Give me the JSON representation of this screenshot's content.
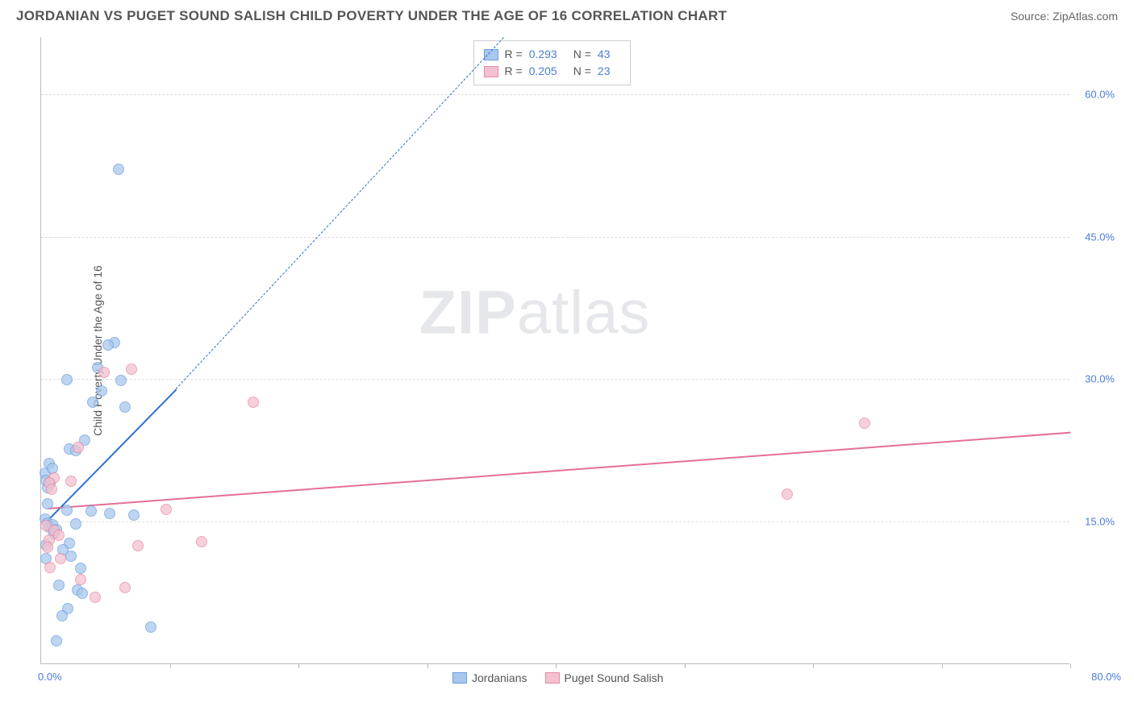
{
  "header": {
    "title": "JORDANIAN VS PUGET SOUND SALISH CHILD POVERTY UNDER THE AGE OF 16 CORRELATION CHART",
    "source": "Source: ZipAtlas.com"
  },
  "chart": {
    "type": "scatter",
    "y_label": "Child Poverty Under the Age of 16",
    "x_min": 0,
    "x_max": 80,
    "y_min": 0,
    "y_max": 66,
    "x_origin_label": "0.0%",
    "x_max_label": "80.0%",
    "y_ticks": [
      15.0,
      30.0,
      45.0,
      60.0
    ],
    "y_tick_labels": [
      "15.0%",
      "30.0%",
      "45.0%",
      "60.0%"
    ],
    "x_tick_marks": [
      10,
      20,
      30,
      40,
      50,
      60,
      70,
      80
    ],
    "grid_color": "#dddddd",
    "axis_color": "#bbbbbb",
    "point_radius": 7,
    "point_opacity": 0.75,
    "series": [
      {
        "key": "jordanians",
        "label": "Jordanians",
        "fill": "#a9c7ed",
        "stroke": "#6b9fe0",
        "trend_color": "#2e6fd1",
        "r_value": "0.293",
        "n_value": "43",
        "trend_start": {
          "x": 0.5,
          "y": 15.2
        },
        "trend_solid_end": {
          "x": 10.5,
          "y": 29.0
        },
        "trend_dashed_end": {
          "x": 36,
          "y": 66
        },
        "points": [
          {
            "x": 6.0,
            "y": 52.0
          },
          {
            "x": 5.7,
            "y": 33.8
          },
          {
            "x": 5.2,
            "y": 33.5
          },
          {
            "x": 4.4,
            "y": 31.1
          },
          {
            "x": 2.0,
            "y": 29.9
          },
          {
            "x": 6.2,
            "y": 29.8
          },
          {
            "x": 4.7,
            "y": 28.7
          },
          {
            "x": 4.0,
            "y": 27.5
          },
          {
            "x": 6.5,
            "y": 27.0
          },
          {
            "x": 3.4,
            "y": 23.5
          },
          {
            "x": 2.2,
            "y": 22.6
          },
          {
            "x": 2.7,
            "y": 22.4
          },
          {
            "x": 0.6,
            "y": 21.0
          },
          {
            "x": 0.3,
            "y": 20.0
          },
          {
            "x": 0.4,
            "y": 19.3
          },
          {
            "x": 0.5,
            "y": 18.5
          },
          {
            "x": 0.7,
            "y": 19.0
          },
          {
            "x": 2.0,
            "y": 16.1
          },
          {
            "x": 3.9,
            "y": 16.0
          },
          {
            "x": 5.3,
            "y": 15.8
          },
          {
            "x": 2.7,
            "y": 14.7
          },
          {
            "x": 0.3,
            "y": 15.2
          },
          {
            "x": 0.5,
            "y": 14.8
          },
          {
            "x": 0.6,
            "y": 14.3
          },
          {
            "x": 0.9,
            "y": 14.6
          },
          {
            "x": 1.2,
            "y": 14.1
          },
          {
            "x": 1.0,
            "y": 13.7
          },
          {
            "x": 0.4,
            "y": 12.5
          },
          {
            "x": 2.2,
            "y": 12.6
          },
          {
            "x": 1.7,
            "y": 12.0
          },
          {
            "x": 2.3,
            "y": 11.3
          },
          {
            "x": 0.4,
            "y": 11.0
          },
          {
            "x": 3.1,
            "y": 10.0
          },
          {
            "x": 1.4,
            "y": 8.2
          },
          {
            "x": 2.8,
            "y": 7.7
          },
          {
            "x": 3.2,
            "y": 7.4
          },
          {
            "x": 2.1,
            "y": 5.8
          },
          {
            "x": 1.6,
            "y": 5.0
          },
          {
            "x": 8.5,
            "y": 3.8
          },
          {
            "x": 1.2,
            "y": 2.4
          },
          {
            "x": 0.5,
            "y": 16.8
          },
          {
            "x": 7.2,
            "y": 15.6
          },
          {
            "x": 0.9,
            "y": 20.5
          }
        ]
      },
      {
        "key": "puget_sound_salish",
        "label": "Puget Sound Salish",
        "fill": "#f4c1ce",
        "stroke": "#e78aa5",
        "trend_color": "#e46f96",
        "r_value": "0.205",
        "n_value": "23",
        "trend_start": {
          "x": 0.5,
          "y": 16.5
        },
        "trend_solid_end": {
          "x": 80,
          "y": 24.5
        },
        "points": [
          {
            "x": 7.0,
            "y": 31.0
          },
          {
            "x": 4.9,
            "y": 30.6
          },
          {
            "x": 16.5,
            "y": 27.5
          },
          {
            "x": 64.0,
            "y": 25.3
          },
          {
            "x": 2.9,
            "y": 22.7
          },
          {
            "x": 1.0,
            "y": 19.5
          },
          {
            "x": 0.6,
            "y": 19.0
          },
          {
            "x": 0.8,
            "y": 18.3
          },
          {
            "x": 58.0,
            "y": 17.8
          },
          {
            "x": 9.7,
            "y": 16.2
          },
          {
            "x": 0.4,
            "y": 14.5
          },
          {
            "x": 1.0,
            "y": 14.0
          },
          {
            "x": 1.4,
            "y": 13.5
          },
          {
            "x": 0.6,
            "y": 13.0
          },
          {
            "x": 12.5,
            "y": 12.8
          },
          {
            "x": 7.5,
            "y": 12.4
          },
          {
            "x": 1.5,
            "y": 11.0
          },
          {
            "x": 0.7,
            "y": 10.1
          },
          {
            "x": 3.1,
            "y": 8.8
          },
          {
            "x": 6.5,
            "y": 8.0
          },
          {
            "x": 4.2,
            "y": 7.0
          },
          {
            "x": 2.3,
            "y": 19.2
          },
          {
            "x": 0.5,
            "y": 12.2
          }
        ]
      }
    ],
    "legend_top": {
      "r_label": "R =",
      "n_label": "N ="
    },
    "watermark": {
      "prefix": "ZIP",
      "suffix": "atlas"
    }
  }
}
